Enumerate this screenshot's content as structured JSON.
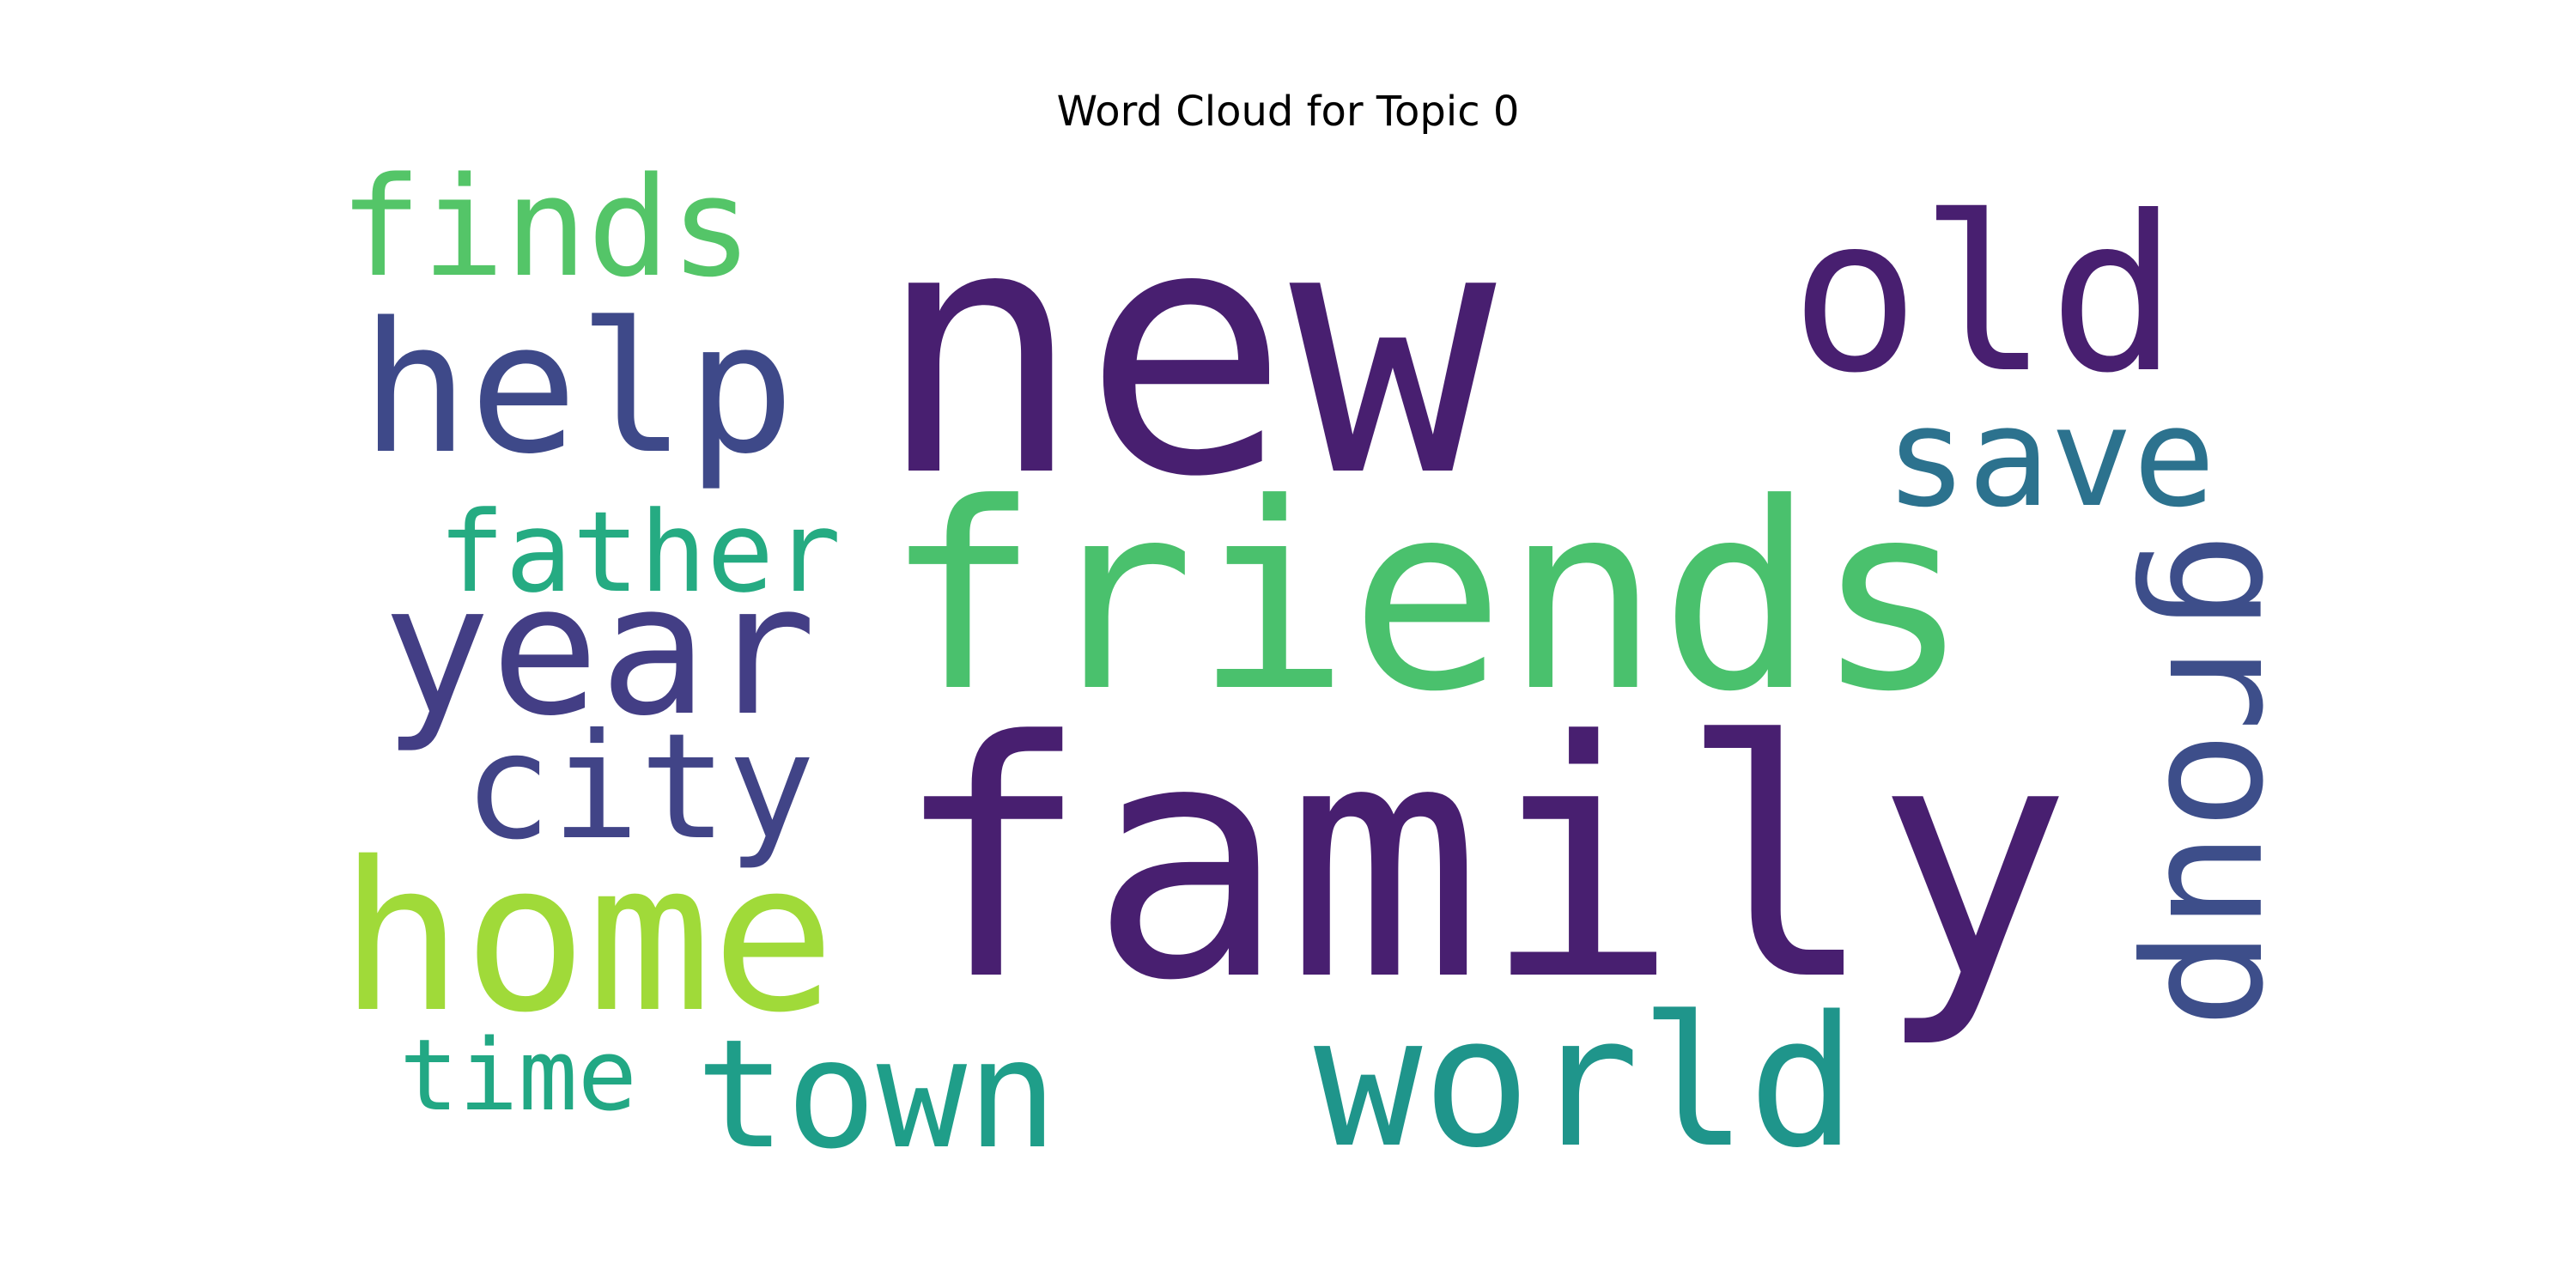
{
  "chart_data": {
    "type": "wordcloud",
    "title": "Word Cloud for Topic 0",
    "background": "#ffffff",
    "words": [
      {
        "text": "new",
        "weight": 1.0,
        "color": "#481f70",
        "orientation": "horizontal"
      },
      {
        "text": "family",
        "weight": 0.95,
        "color": "#481f70",
        "orientation": "horizontal"
      },
      {
        "text": "friends",
        "weight": 0.78,
        "color": "#4ac16d",
        "orientation": "horizontal"
      },
      {
        "text": "help",
        "weight": 0.62,
        "color": "#3e4989",
        "orientation": "horizontal"
      },
      {
        "text": "old",
        "weight": 0.6,
        "color": "#481f70",
        "orientation": "horizontal"
      },
      {
        "text": "year",
        "weight": 0.6,
        "color": "#433e85",
        "orientation": "horizontal"
      },
      {
        "text": "home",
        "weight": 0.6,
        "color": "#a0da39",
        "orientation": "horizontal"
      },
      {
        "text": "world",
        "weight": 0.6,
        "color": "#1f958b",
        "orientation": "horizontal"
      },
      {
        "text": "group",
        "weight": 0.52,
        "color": "#3d4e8a",
        "orientation": "vertical"
      },
      {
        "text": "city",
        "weight": 0.48,
        "color": "#414487",
        "orientation": "horizontal"
      },
      {
        "text": "save",
        "weight": 0.47,
        "color": "#2c728e",
        "orientation": "horizontal"
      },
      {
        "text": "town",
        "weight": 0.46,
        "color": "#1f9e89",
        "orientation": "horizontal"
      },
      {
        "text": "finds",
        "weight": 0.44,
        "color": "#54c568",
        "orientation": "horizontal"
      },
      {
        "text": "father",
        "weight": 0.37,
        "color": "#25ab82",
        "orientation": "horizontal"
      },
      {
        "text": "time",
        "weight": 0.31,
        "color": "#22a884",
        "orientation": "horizontal"
      }
    ]
  }
}
